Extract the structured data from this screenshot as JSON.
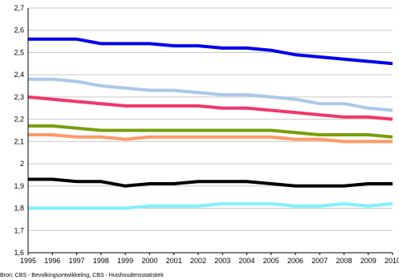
{
  "chart_data": {
    "type": "line",
    "title": "",
    "xlabel": "",
    "ylabel": "",
    "x": [
      1995,
      1996,
      1997,
      1998,
      1999,
      2000,
      2001,
      2002,
      2003,
      2004,
      2005,
      2006,
      2007,
      2008,
      2009,
      2010
    ],
    "ylim": [
      1.6,
      2.7
    ],
    "y_ticks": [
      "1,6",
      "1,7",
      "1,8",
      "1,9",
      "2",
      "2,1",
      "2,2",
      "2,3",
      "2,4",
      "2,5",
      "2,6",
      "2,7"
    ],
    "x_ticks": [
      "1995",
      "1996",
      "1997",
      "1998",
      "1999",
      "2000",
      "2001",
      "2002",
      "2003",
      "2004",
      "2005",
      "2006",
      "2007",
      "2008",
      "2009",
      "2010"
    ],
    "grid": true,
    "legend": "none",
    "series": [
      {
        "color": "#0000ee",
        "values": [
          2.56,
          2.56,
          2.56,
          2.54,
          2.54,
          2.54,
          2.53,
          2.53,
          2.52,
          2.52,
          2.51,
          2.49,
          2.48,
          2.47,
          2.46,
          2.45
        ]
      },
      {
        "color": "#a9c8ec",
        "values": [
          2.38,
          2.38,
          2.37,
          2.35,
          2.34,
          2.33,
          2.33,
          2.32,
          2.31,
          2.31,
          2.3,
          2.29,
          2.27,
          2.27,
          2.25,
          2.24
        ]
      },
      {
        "color": "#f0386a",
        "values": [
          2.3,
          2.29,
          2.28,
          2.27,
          2.26,
          2.26,
          2.26,
          2.26,
          2.25,
          2.25,
          2.24,
          2.23,
          2.22,
          2.21,
          2.21,
          2.2
        ]
      },
      {
        "color": "#7a9e0c",
        "values": [
          2.17,
          2.17,
          2.16,
          2.15,
          2.15,
          2.15,
          2.15,
          2.15,
          2.15,
          2.15,
          2.15,
          2.14,
          2.13,
          2.13,
          2.13,
          2.12
        ]
      },
      {
        "color": "#ff9966",
        "values": [
          2.13,
          2.13,
          2.12,
          2.12,
          2.11,
          2.12,
          2.12,
          2.12,
          2.12,
          2.12,
          2.12,
          2.11,
          2.11,
          2.1,
          2.1,
          2.1
        ]
      },
      {
        "color": "#000000",
        "values": [
          1.93,
          1.93,
          1.92,
          1.92,
          1.9,
          1.91,
          1.91,
          1.92,
          1.92,
          1.92,
          1.91,
          1.9,
          1.9,
          1.9,
          1.91,
          1.91
        ]
      },
      {
        "color": "#80f0ff",
        "values": [
          1.8,
          1.8,
          1.8,
          1.8,
          1.8,
          1.81,
          1.81,
          1.81,
          1.82,
          1.82,
          1.82,
          1.81,
          1.81,
          1.82,
          1.81,
          1.82
        ]
      }
    ],
    "source": "Bron: CBS - Bevolkingsontwikkeling, CBS - Huishoudensstatistiek"
  },
  "colors": {
    "gridline": "#c8c8c8",
    "axis": "#000000"
  }
}
